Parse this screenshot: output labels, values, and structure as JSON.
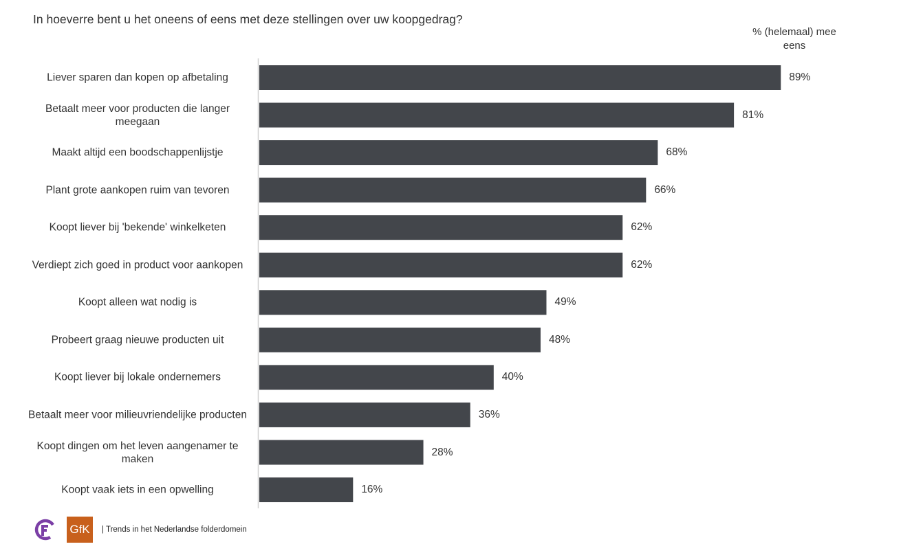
{
  "chart_data": {
    "type": "bar",
    "orientation": "horizontal",
    "title": "In hoeverre bent u het oneens of eens met deze stellingen over uw koopgedrag?",
    "value_header": "% (helemaal) mee eens",
    "categories": [
      "Liever sparen dan kopen op afbetaling",
      "Betaalt meer voor producten die langer meegaan",
      "Maakt altijd een boodschappenlijstje",
      "Plant grote aankopen ruim van tevoren",
      "Koopt liever bij 'bekende' winkelketen",
      "Verdiept zich goed in product voor aankopen",
      "Koopt alleen wat nodig is",
      "Probeert graag nieuwe producten uit",
      "Koopt liever bij lokale ondernemers",
      "Betaalt meer voor milieuvriendelijke producten",
      "Koopt dingen om het leven aangenamer te maken",
      "Koopt vaak iets in een opwelling"
    ],
    "values": [
      89,
      81,
      68,
      66,
      62,
      62,
      49,
      48,
      40,
      36,
      28,
      16
    ],
    "value_labels": [
      "89%",
      "81%",
      "68%",
      "66%",
      "62%",
      "62%",
      "49%",
      "48%",
      "40%",
      "36%",
      "28%",
      "16%"
    ],
    "xlim": [
      0,
      100
    ],
    "bar_color": "#43464b"
  },
  "footer": {
    "text": "| Trends in het Nederlandse folderdomein",
    "logo2_text": "GfK",
    "logo_color": "#7b3fa6",
    "gfk_color": "#c8601c"
  }
}
